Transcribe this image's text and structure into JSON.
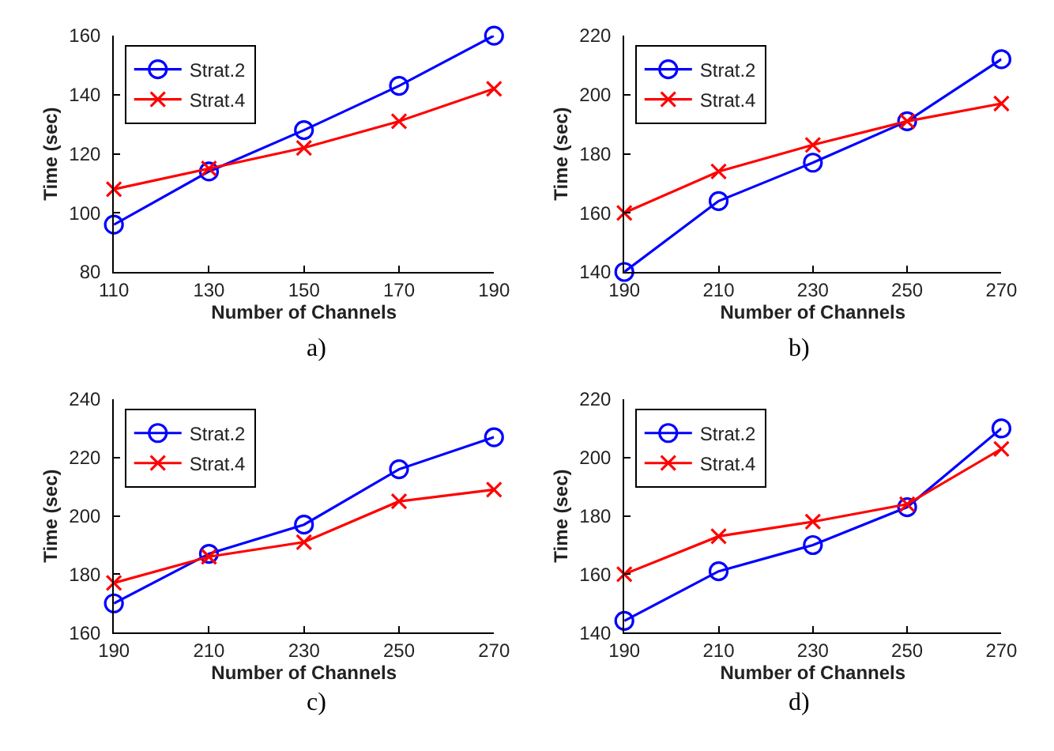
{
  "chart_data": [
    {
      "type": "line",
      "xlabel": "Number of Channels",
      "ylabel": "Time (sec)",
      "annotations": [
        "a)"
      ],
      "legend": "top left",
      "x": [
        110,
        130,
        150,
        170,
        190
      ],
      "xlim": [
        110,
        190
      ],
      "xticks": [
        110,
        130,
        150,
        170,
        190
      ],
      "ylim": [
        80,
        160
      ],
      "yticks": [
        80,
        100,
        120,
        140,
        160
      ],
      "series": [
        {
          "name": "Strat.2",
          "color": "#0000ff",
          "marker": "circle",
          "values": [
            96,
            114,
            128,
            143,
            160
          ]
        },
        {
          "name": "Strat.4",
          "color": "#ff0000",
          "marker": "cross",
          "values": [
            108,
            115,
            122,
            131,
            142
          ]
        }
      ]
    },
    {
      "type": "line",
      "xlabel": "Number of Channels",
      "ylabel": "Time (sec)",
      "annotations": [
        "b)"
      ],
      "legend": "top left",
      "x": [
        190,
        210,
        230,
        250,
        270
      ],
      "xlim": [
        190,
        270
      ],
      "xticks": [
        190,
        210,
        230,
        250,
        270
      ],
      "ylim": [
        140,
        220
      ],
      "yticks": [
        140,
        160,
        180,
        200,
        220
      ],
      "series": [
        {
          "name": "Strat.2",
          "color": "#0000ff",
          "marker": "circle",
          "values": [
            140,
            164,
            177,
            191,
            212
          ]
        },
        {
          "name": "Strat.4",
          "color": "#ff0000",
          "marker": "cross",
          "values": [
            160,
            174,
            183,
            191,
            197
          ]
        }
      ]
    },
    {
      "type": "line",
      "xlabel": "Number of Channels",
      "ylabel": "Time (sec)",
      "annotations": [
        "c)"
      ],
      "legend": "top left",
      "x": [
        190,
        210,
        230,
        250,
        270
      ],
      "xlim": [
        190,
        270
      ],
      "xticks": [
        190,
        210,
        230,
        250,
        270
      ],
      "ylim": [
        160,
        240
      ],
      "yticks": [
        160,
        180,
        200,
        220,
        240
      ],
      "series": [
        {
          "name": "Strat.2",
          "color": "#0000ff",
          "marker": "circle",
          "values": [
            170,
            187,
            197,
            216,
            227
          ]
        },
        {
          "name": "Strat.4",
          "color": "#ff0000",
          "marker": "cross",
          "values": [
            177,
            186,
            191,
            205,
            209
          ]
        }
      ]
    },
    {
      "type": "line",
      "xlabel": "Number of Channels",
      "ylabel": "Time (sec)",
      "annotations": [
        "d)"
      ],
      "legend": "top left",
      "x": [
        190,
        210,
        230,
        250,
        270
      ],
      "xlim": [
        190,
        270
      ],
      "xticks": [
        190,
        210,
        230,
        250,
        270
      ],
      "ylim": [
        140,
        220
      ],
      "yticks": [
        140,
        160,
        180,
        200,
        220
      ],
      "series": [
        {
          "name": "Strat.2",
          "color": "#0000ff",
          "marker": "circle",
          "values": [
            144,
            161,
            170,
            183,
            210
          ]
        },
        {
          "name": "Strat.4",
          "color": "#ff0000",
          "marker": "cross",
          "values": [
            160,
            173,
            178,
            184,
            203
          ]
        }
      ]
    }
  ]
}
